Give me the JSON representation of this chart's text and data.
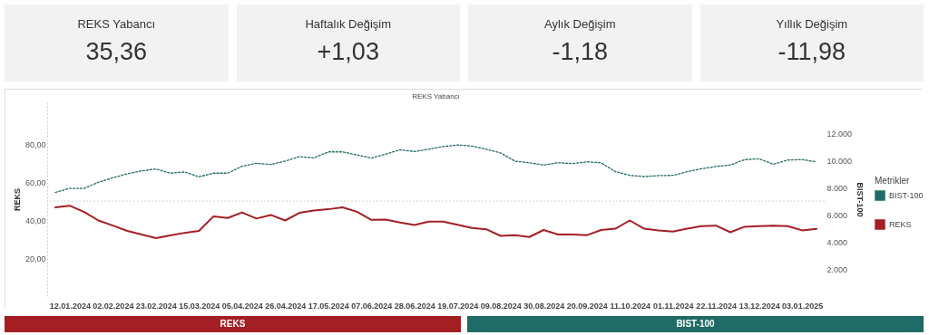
{
  "chart_data": [
    {
      "type": "other",
      "categories": [
        "REKS Yabancı",
        "Haftalık Değişim",
        "Aylık Değişim",
        "Yıllık Değişim"
      ],
      "value_labels": [
        "35,36",
        "+1,03",
        "-1,18",
        "-11,98"
      ]
    },
    {
      "type": "line",
      "title": "REKS Yabancı",
      "ylabel": "REKS",
      "y2label": "BIST-100",
      "legend_title": "Metrikler",
      "legend": "right",
      "grid": false,
      "x": [
        "2024-01-05",
        "2024-01-12",
        "2024-01-19",
        "2024-01-26",
        "2024-02-02",
        "2024-02-09",
        "2024-02-16",
        "2024-02-23",
        "2024-03-01",
        "2024-03-08",
        "2024-03-15",
        "2024-03-22",
        "2024-03-29",
        "2024-04-05",
        "2024-04-12",
        "2024-04-19",
        "2024-04-26",
        "2024-05-03",
        "2024-05-10",
        "2024-05-17",
        "2024-05-24",
        "2024-05-31",
        "2024-06-07",
        "2024-06-14",
        "2024-06-21",
        "2024-06-28",
        "2024-07-05",
        "2024-07-12",
        "2024-07-19",
        "2024-07-26",
        "2024-08-02",
        "2024-08-09",
        "2024-08-16",
        "2024-08-23",
        "2024-08-30",
        "2024-09-06",
        "2024-09-13",
        "2024-09-20",
        "2024-09-27",
        "2024-10-04",
        "2024-10-11",
        "2024-10-18",
        "2024-10-25",
        "2024-11-01",
        "2024-11-08",
        "2024-11-15",
        "2024-11-22",
        "2024-11-29",
        "2024-12-06",
        "2024-12-13",
        "2024-12-20",
        "2024-12-27",
        "2025-01-03",
        "2025-01-10"
      ],
      "xlim": [
        "2024-01-01",
        "2025-01-14"
      ],
      "xticks": [
        {
          "value": "2024-01-12",
          "label": "12.01.2024"
        },
        {
          "value": "2024-02-02",
          "label": "02.02.2024"
        },
        {
          "value": "2024-02-23",
          "label": "23.02.2024"
        },
        {
          "value": "2024-03-15",
          "label": "15.03.2024"
        },
        {
          "value": "2024-04-05",
          "label": "05.04.2024"
        },
        {
          "value": "2024-04-26",
          "label": "26.04.2024"
        },
        {
          "value": "2024-05-17",
          "label": "17.05.2024"
        },
        {
          "value": "2024-06-07",
          "label": "07.06.2024"
        },
        {
          "value": "2024-06-28",
          "label": "28.06.2024"
        },
        {
          "value": "2024-07-19",
          "label": "19.07.2024"
        },
        {
          "value": "2024-08-09",
          "label": "09.08.2024"
        },
        {
          "value": "2024-08-30",
          "label": "30.08.2024"
        },
        {
          "value": "2024-09-20",
          "label": "20.09.2024"
        },
        {
          "value": "2024-10-11",
          "label": "11.10.2024"
        },
        {
          "value": "2024-11-01",
          "label": "01.11.2024"
        },
        {
          "value": "2024-11-22",
          "label": "22.11.2024"
        },
        {
          "value": "2024-12-13",
          "label": "13.12.2024"
        },
        {
          "value": "2025-01-03",
          "label": "03.01.2025"
        }
      ],
      "ylim": [
        0,
        102
      ],
      "yticks": [
        {
          "value": 20,
          "label": "20,00"
        },
        {
          "value": 40,
          "label": "40,00"
        },
        {
          "value": 60,
          "label": "60,00"
        },
        {
          "value": 80,
          "label": "80,00"
        }
      ],
      "y2lim": [
        0,
        14300
      ],
      "y2ticks": [
        {
          "value": 2000,
          "label": "2.000"
        },
        {
          "value": 4000,
          "label": "4.000"
        },
        {
          "value": 6000,
          "label": "6.000"
        },
        {
          "value": 8000,
          "label": "8.000"
        },
        {
          "value": 10000,
          "label": "10.000"
        },
        {
          "value": 12000,
          "label": "12.000"
        }
      ],
      "ref_lines": [
        {
          "axis": "y",
          "value": 50,
          "color": "#d0d0d0",
          "line_style": "dotted"
        }
      ],
      "series": [
        {
          "name": "BIST-100",
          "axis": "y2",
          "color": "#1f6b65",
          "line_style": "dotted",
          "values": [
            7650,
            7950,
            7950,
            8400,
            8730,
            9020,
            9240,
            9380,
            9070,
            9160,
            8800,
            9070,
            9070,
            9580,
            9800,
            9710,
            9960,
            10290,
            10200,
            10640,
            10640,
            10420,
            10180,
            10470,
            10800,
            10670,
            10840,
            11040,
            11150,
            11070,
            10840,
            10560,
            9960,
            9840,
            9670,
            9840,
            9780,
            9910,
            9840,
            9180,
            8910,
            8820,
            8890,
            8910,
            9180,
            9400,
            9560,
            9670,
            10070,
            10130,
            9730,
            10040,
            10070,
            9910
          ]
        },
        {
          "name": "REKS",
          "color": "#a31f24",
          "line_style": "solid",
          "values": [
            46.7,
            47.6,
            44.3,
            39.8,
            37.1,
            34.3,
            32.4,
            30.5,
            31.9,
            33.3,
            34.3,
            41.9,
            41.1,
            44.0,
            40.8,
            42.7,
            39.8,
            43.8,
            45.0,
            45.7,
            46.7,
            44.4,
            40.1,
            40.3,
            38.7,
            37.4,
            39.2,
            39.2,
            37.5,
            35.9,
            35.2,
            31.7,
            32.0,
            31.1,
            34.8,
            32.4,
            32.4,
            32.0,
            34.8,
            35.5,
            39.8,
            35.5,
            34.6,
            34.0,
            35.5,
            36.8,
            37.1,
            33.6,
            36.5,
            36.8,
            37.1,
            36.8,
            34.6,
            35.4
          ]
        }
      ]
    },
    {
      "type": "other",
      "categories": [
        "REKS",
        "BIST-100"
      ],
      "colors": [
        "#a31f24",
        "#1f6b65"
      ]
    }
  ]
}
